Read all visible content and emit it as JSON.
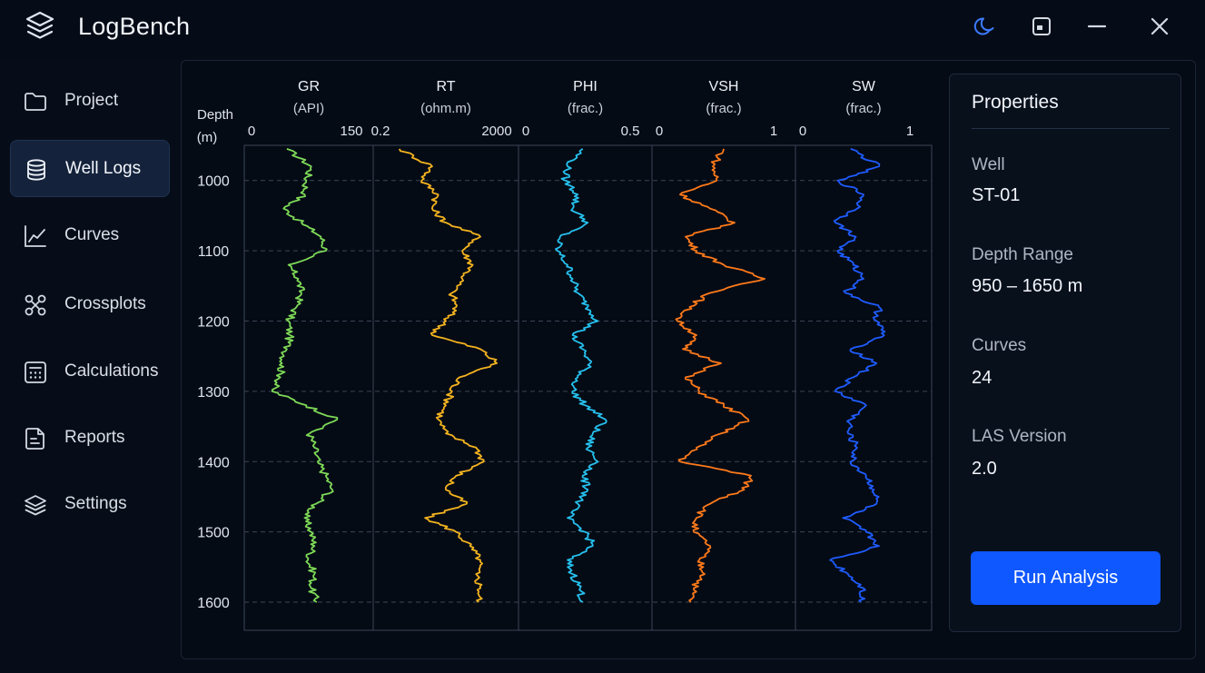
{
  "app": {
    "title": "LogBench"
  },
  "window_controls": {
    "theme_icon": "moon-icon",
    "panel_icon": "window-panel-icon",
    "minimize_icon": "minimize-icon",
    "close_icon": "close-icon"
  },
  "sidebar": {
    "items": [
      {
        "label": "Project",
        "icon": "folder-icon",
        "active": false
      },
      {
        "label": "Well Logs",
        "icon": "database-icon",
        "active": true
      },
      {
        "label": "Curves",
        "icon": "line-chart-icon",
        "active": false
      },
      {
        "label": "Crossplots",
        "icon": "crossplot-icon",
        "active": false
      },
      {
        "label": "Calculations",
        "icon": "calculator-icon",
        "active": false
      },
      {
        "label": "Reports",
        "icon": "report-icon",
        "active": false
      },
      {
        "label": "Settings",
        "icon": "layers-icon",
        "active": false
      }
    ]
  },
  "properties": {
    "title": "Properties",
    "fields": [
      {
        "label": "Well",
        "value": "ST-01"
      },
      {
        "label": "Depth Range",
        "value": "950 – 1650 m"
      },
      {
        "label": "Curves",
        "value": "24"
      },
      {
        "label": "LAS Version",
        "value": "2.0"
      }
    ],
    "run_button": "Run Analysis"
  },
  "chart_data": {
    "type": "line",
    "depth_axis": {
      "label_line1": "Depth",
      "label_line2": "(m)",
      "ticks": [
        1000,
        1100,
        1200,
        1300,
        1400,
        1500,
        1600
      ],
      "range": [
        950,
        1640
      ]
    },
    "grid": true,
    "tracks": [
      {
        "name": "GR",
        "unit": "(API)",
        "min_label": "0",
        "max_label": "150",
        "min": 0,
        "max": 150,
        "color": "#7ed957",
        "depth": [
          955,
          980,
          1000,
          1020,
          1040,
          1060,
          1080,
          1100,
          1120,
          1140,
          1160,
          1180,
          1200,
          1220,
          1240,
          1260,
          1280,
          1300,
          1320,
          1340,
          1360,
          1380,
          1400,
          1420,
          1440,
          1460,
          1480,
          1500,
          1520,
          1540,
          1560,
          1580,
          1600
        ],
        "values": [
          48,
          78,
          72,
          70,
          44,
          66,
          90,
          96,
          50,
          62,
          66,
          60,
          50,
          52,
          48,
          42,
          40,
          30,
          72,
          110,
          76,
          82,
          86,
          96,
          104,
          84,
          70,
          78,
          82,
          74,
          82,
          78,
          85
        ]
      },
      {
        "name": "RT",
        "unit": "(ohm.m)",
        "min_label": "0.2",
        "max_label": "2000",
        "min": 0.2,
        "max": 2000,
        "scale": "log",
        "color": "#f5b41f",
        "depth": [
          955,
          980,
          1000,
          1020,
          1040,
          1060,
          1080,
          1100,
          1120,
          1140,
          1160,
          1180,
          1200,
          1220,
          1240,
          1260,
          1280,
          1300,
          1320,
          1340,
          1360,
          1380,
          1400,
          1420,
          1440,
          1460,
          1480,
          1500,
          1520,
          1540,
          1560,
          1580,
          1600
        ],
        "values": [
          0.9,
          8,
          4,
          12,
          8,
          20,
          200,
          60,
          120,
          60,
          30,
          40,
          20,
          8,
          200,
          600,
          50,
          30,
          20,
          12,
          20,
          150,
          250,
          40,
          20,
          80,
          5,
          40,
          100,
          200,
          150,
          200,
          180
        ]
      },
      {
        "name": "PHI",
        "unit": "(frac.)",
        "min_label": "0",
        "max_label": "0.5",
        "min": 0,
        "max": 0.5,
        "color": "#26c0ee",
        "depth": [
          955,
          980,
          1000,
          1020,
          1040,
          1060,
          1080,
          1100,
          1120,
          1140,
          1160,
          1180,
          1200,
          1220,
          1240,
          1260,
          1280,
          1300,
          1320,
          1340,
          1360,
          1380,
          1400,
          1420,
          1440,
          1460,
          1480,
          1500,
          1520,
          1540,
          1560,
          1580,
          1600
        ],
        "values": [
          0.24,
          0.18,
          0.17,
          0.22,
          0.2,
          0.26,
          0.15,
          0.14,
          0.18,
          0.2,
          0.22,
          0.26,
          0.3,
          0.2,
          0.24,
          0.27,
          0.22,
          0.2,
          0.25,
          0.33,
          0.28,
          0.26,
          0.3,
          0.24,
          0.26,
          0.22,
          0.18,
          0.25,
          0.28,
          0.18,
          0.2,
          0.23,
          0.24
        ]
      },
      {
        "name": "VSH",
        "unit": "(frac.)",
        "min_label": "0",
        "max_label": "1",
        "min": 0,
        "max": 1,
        "color": "#ff7a1a",
        "depth": [
          955,
          980,
          1000,
          1020,
          1040,
          1060,
          1080,
          1100,
          1120,
          1140,
          1160,
          1180,
          1200,
          1220,
          1240,
          1260,
          1280,
          1300,
          1320,
          1340,
          1360,
          1380,
          1400,
          1420,
          1440,
          1460,
          1480,
          1500,
          1520,
          1540,
          1560,
          1580,
          1600
        ],
        "values": [
          0.5,
          0.42,
          0.45,
          0.18,
          0.4,
          0.58,
          0.22,
          0.3,
          0.5,
          0.8,
          0.4,
          0.25,
          0.16,
          0.3,
          0.2,
          0.48,
          0.22,
          0.32,
          0.5,
          0.68,
          0.48,
          0.3,
          0.18,
          0.7,
          0.65,
          0.4,
          0.3,
          0.28,
          0.4,
          0.32,
          0.36,
          0.28,
          0.26
        ]
      },
      {
        "name": "SW",
        "unit": "(frac.)",
        "min_label": "0",
        "max_label": "1",
        "min": 0,
        "max": 1,
        "color": "#1f5cff",
        "depth": [
          955,
          980,
          1000,
          1020,
          1040,
          1060,
          1080,
          1100,
          1120,
          1140,
          1160,
          1180,
          1200,
          1220,
          1240,
          1260,
          1280,
          1300,
          1320,
          1340,
          1360,
          1380,
          1400,
          1420,
          1440,
          1460,
          1480,
          1500,
          1520,
          1540,
          1560,
          1580,
          1600
        ],
        "values": [
          0.4,
          0.62,
          0.3,
          0.5,
          0.45,
          0.28,
          0.44,
          0.3,
          0.42,
          0.5,
          0.36,
          0.62,
          0.6,
          0.66,
          0.4,
          0.6,
          0.42,
          0.28,
          0.52,
          0.4,
          0.38,
          0.45,
          0.4,
          0.52,
          0.58,
          0.6,
          0.34,
          0.52,
          0.62,
          0.24,
          0.38,
          0.5,
          0.48
        ]
      }
    ]
  }
}
